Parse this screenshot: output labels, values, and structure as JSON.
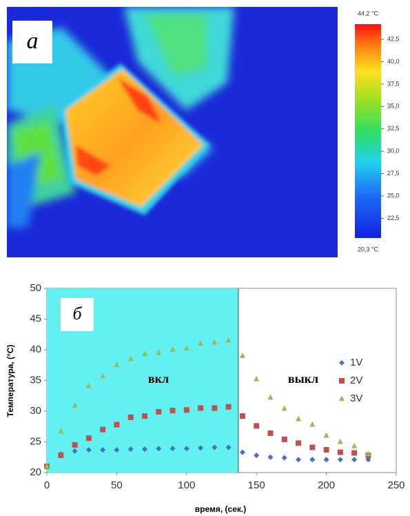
{
  "thermal_image": {
    "label": "а",
    "colorbar": {
      "min_label": "20,3 °C",
      "max_label": "44,2 °C",
      "range": [
        20.3,
        44.2
      ],
      "ticks": [
        {
          "value": 42.5,
          "label": "42,5"
        },
        {
          "value": 40,
          "label": "40,0"
        },
        {
          "value": 37.5,
          "label": "37,5"
        },
        {
          "value": 35,
          "label": "35,0"
        },
        {
          "value": 32.5,
          "label": "32,5"
        },
        {
          "value": 30,
          "label": "30,0"
        },
        {
          "value": 27.5,
          "label": "27,5"
        },
        {
          "value": 25,
          "label": "25,0"
        },
        {
          "value": 22.5,
          "label": "22,5"
        }
      ]
    }
  },
  "chart_data": {
    "type": "scatter",
    "panel_label": "б",
    "xlabel": "время, (сек.)",
    "ylabel": "Температура, (°С)",
    "annotations": [
      "вкл",
      "выкл"
    ],
    "shaded_region": {
      "xlim": [
        0,
        137
      ],
      "color": "#62f0f0"
    },
    "x": [
      0,
      10,
      20,
      30,
      40,
      50,
      60,
      70,
      80,
      90,
      100,
      110,
      120,
      130,
      140,
      150,
      160,
      170,
      180,
      190,
      200,
      210,
      220,
      230
    ],
    "series": [
      {
        "name": "1V",
        "color": "#4472c4",
        "marker": "diamond",
        "values": [
          21,
          23,
          23.5,
          23.7,
          23.7,
          23.7,
          23.8,
          23.8,
          23.9,
          23.9,
          23.9,
          24,
          24.1,
          24.1,
          23.3,
          22.8,
          22.5,
          22.4,
          22.1,
          22.1,
          22.1,
          22.1,
          22.1,
          22.1
        ]
      },
      {
        "name": "2V",
        "color": "#c0504d",
        "marker": "square",
        "values": [
          21,
          22.8,
          24.5,
          25.6,
          27,
          27.8,
          29,
          29.2,
          29.9,
          30.1,
          30.2,
          30.5,
          30.5,
          30.7,
          29.2,
          27.6,
          26.4,
          25.4,
          24.8,
          24.1,
          23.7,
          23.3,
          23.2,
          22.8
        ]
      },
      {
        "name": "3V",
        "color": "#9bbb59",
        "marker": "triangle",
        "values": [
          21,
          26.7,
          30.9,
          34.1,
          35.7,
          37.5,
          38.5,
          39.3,
          39.5,
          40,
          40.2,
          41,
          41.2,
          41.5,
          39,
          35.2,
          32.2,
          30.4,
          28.7,
          27.8,
          26,
          25,
          24.3,
          23
        ]
      }
    ],
    "xlim": [
      0,
      250
    ],
    "xticks": [
      0,
      50,
      100,
      150,
      200,
      250
    ],
    "ylim": [
      20,
      50
    ],
    "yticks": [
      20,
      25,
      30,
      35,
      40,
      45,
      50
    ]
  }
}
